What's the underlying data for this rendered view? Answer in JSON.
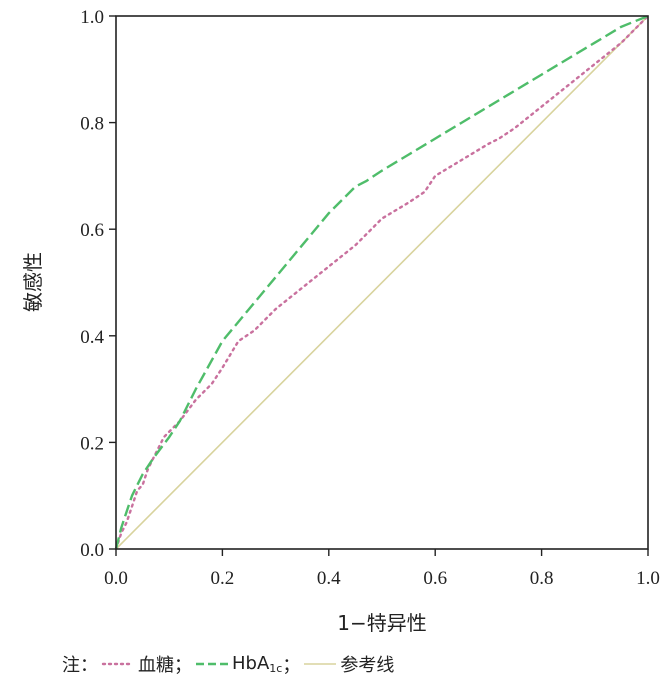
{
  "chart_data": {
    "type": "line",
    "xlabel": "1−特异性",
    "ylabel": "敏感性",
    "xlim": [
      0,
      1
    ],
    "ylim": [
      0,
      1
    ],
    "x_ticks": [
      "0.0",
      "0.2",
      "0.4",
      "0.6",
      "0.8",
      "1.0"
    ],
    "y_ticks": [
      "0.0",
      "0.2",
      "0.4",
      "0.6",
      "0.8",
      "1.0"
    ],
    "grid": false,
    "legend_position": "bottom",
    "series": [
      {
        "name": "血糖",
        "color": "#c9719e",
        "style": "dotted",
        "x": [
          0,
          0.01,
          0.02,
          0.03,
          0.04,
          0.05,
          0.06,
          0.07,
          0.08,
          0.09,
          0.1,
          0.12,
          0.15,
          0.18,
          0.2,
          0.23,
          0.26,
          0.3,
          0.35,
          0.4,
          0.45,
          0.48,
          0.5,
          0.55,
          0.58,
          0.6,
          0.65,
          0.7,
          0.72,
          0.75,
          0.8,
          0.85,
          0.9,
          0.95,
          1.0
        ],
        "y": [
          0,
          0.03,
          0.05,
          0.08,
          0.11,
          0.12,
          0.15,
          0.17,
          0.19,
          0.21,
          0.22,
          0.24,
          0.28,
          0.31,
          0.34,
          0.39,
          0.41,
          0.45,
          0.49,
          0.53,
          0.57,
          0.6,
          0.62,
          0.65,
          0.67,
          0.7,
          0.73,
          0.76,
          0.77,
          0.79,
          0.83,
          0.87,
          0.91,
          0.95,
          1.0
        ]
      },
      {
        "name": "HbA1c",
        "color": "#4fbd6a",
        "style": "dashed",
        "x": [
          0,
          0.01,
          0.02,
          0.03,
          0.04,
          0.05,
          0.07,
          0.1,
          0.12,
          0.15,
          0.2,
          0.25,
          0.3,
          0.35,
          0.4,
          0.45,
          0.47,
          0.5,
          0.55,
          0.6,
          0.65,
          0.7,
          0.75,
          0.8,
          0.85,
          0.9,
          0.95,
          1.0
        ],
        "y": [
          0,
          0.04,
          0.07,
          0.1,
          0.12,
          0.14,
          0.17,
          0.21,
          0.24,
          0.3,
          0.39,
          0.45,
          0.51,
          0.57,
          0.63,
          0.68,
          0.69,
          0.71,
          0.74,
          0.77,
          0.8,
          0.83,
          0.86,
          0.89,
          0.92,
          0.95,
          0.98,
          1.0
        ]
      },
      {
        "name": "参考线",
        "color": "#d8d39d",
        "style": "solid",
        "x": [
          0,
          1
        ],
        "y": [
          0,
          1
        ]
      }
    ]
  },
  "legend": {
    "prefix": "注：",
    "sep": "；",
    "glucose": "血糖",
    "hba_main": "HbA",
    "hba_sub": "1c",
    "ref": "参考线"
  }
}
